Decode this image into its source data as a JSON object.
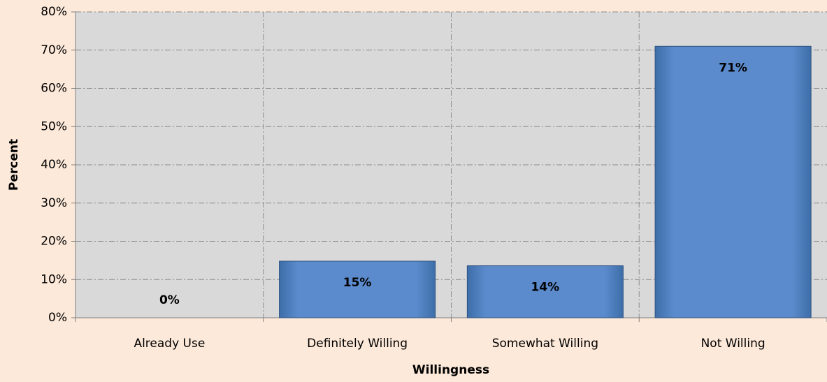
{
  "chart_data": {
    "type": "bar",
    "x_label": "Willingness",
    "y_label": "Percent",
    "categories": [
      "Already Use",
      "Definitely Willing",
      "Somewhat Willing",
      "Not Willing"
    ],
    "values": [
      0,
      14.8,
      13.6,
      71
    ],
    "value_labels": [
      "0%",
      "15%",
      "14%",
      "71%"
    ],
    "color": "#4f81bd",
    "ylim": [
      0,
      80
    ],
    "yticks": [
      {
        "value": 0,
        "label": "0%"
      },
      {
        "value": 10,
        "label": "10%"
      },
      {
        "value": 20,
        "label": "20%"
      },
      {
        "value": 30,
        "label": "30%"
      },
      {
        "value": 40,
        "label": "40%"
      },
      {
        "value": 50,
        "label": "50%"
      },
      {
        "value": 60,
        "label": "60%"
      },
      {
        "value": 70,
        "label": "70%"
      },
      {
        "value": 80,
        "label": "80%"
      }
    ],
    "grid": true
  }
}
